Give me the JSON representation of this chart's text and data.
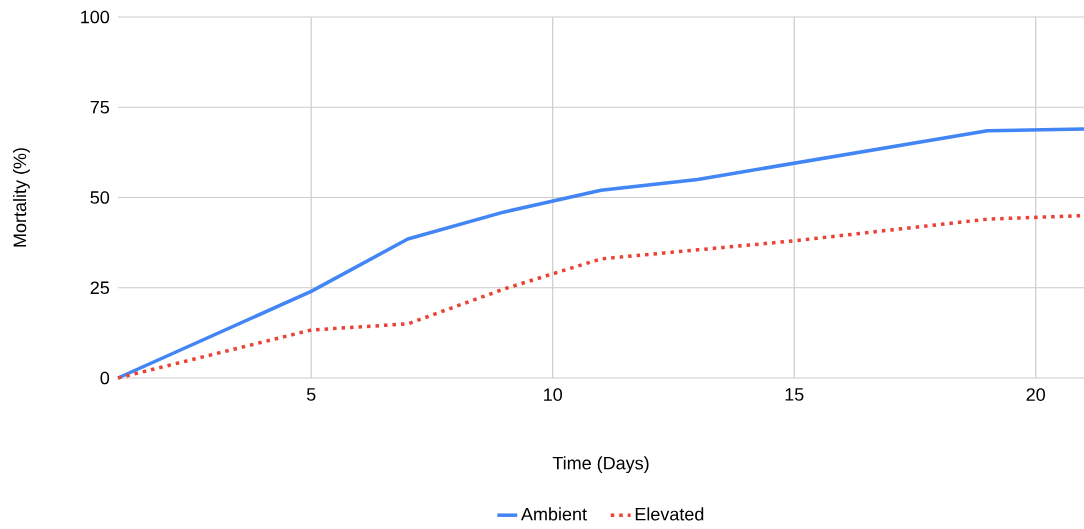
{
  "chart_data": {
    "type": "line",
    "xlabel": "Time (Days)",
    "ylabel": "Mortality (%)",
    "xlim": [
      1,
      21
    ],
    "ylim": [
      0,
      100
    ],
    "xticks": [
      5,
      10,
      15,
      20
    ],
    "yticks": [
      0,
      25,
      50,
      75,
      100
    ],
    "grid": true,
    "legend": "bottom",
    "marker": "none",
    "series": [
      {
        "name": "Ambient",
        "color": "#4285f4",
        "line_style": "solid",
        "x": [
          1,
          5,
          7,
          9,
          11,
          13,
          15,
          19,
          21
        ],
        "values": [
          0,
          24,
          38.5,
          46,
          52,
          55,
          59.5,
          68.5,
          69
        ]
      },
      {
        "name": "Elevated",
        "color": "#ea4335",
        "line_style": "dotted",
        "x": [
          1,
          5,
          7,
          9,
          11,
          13,
          15,
          19,
          21
        ],
        "values": [
          0,
          13.3,
          15,
          24.7,
          33,
          35.5,
          38,
          44,
          45
        ]
      }
    ]
  }
}
